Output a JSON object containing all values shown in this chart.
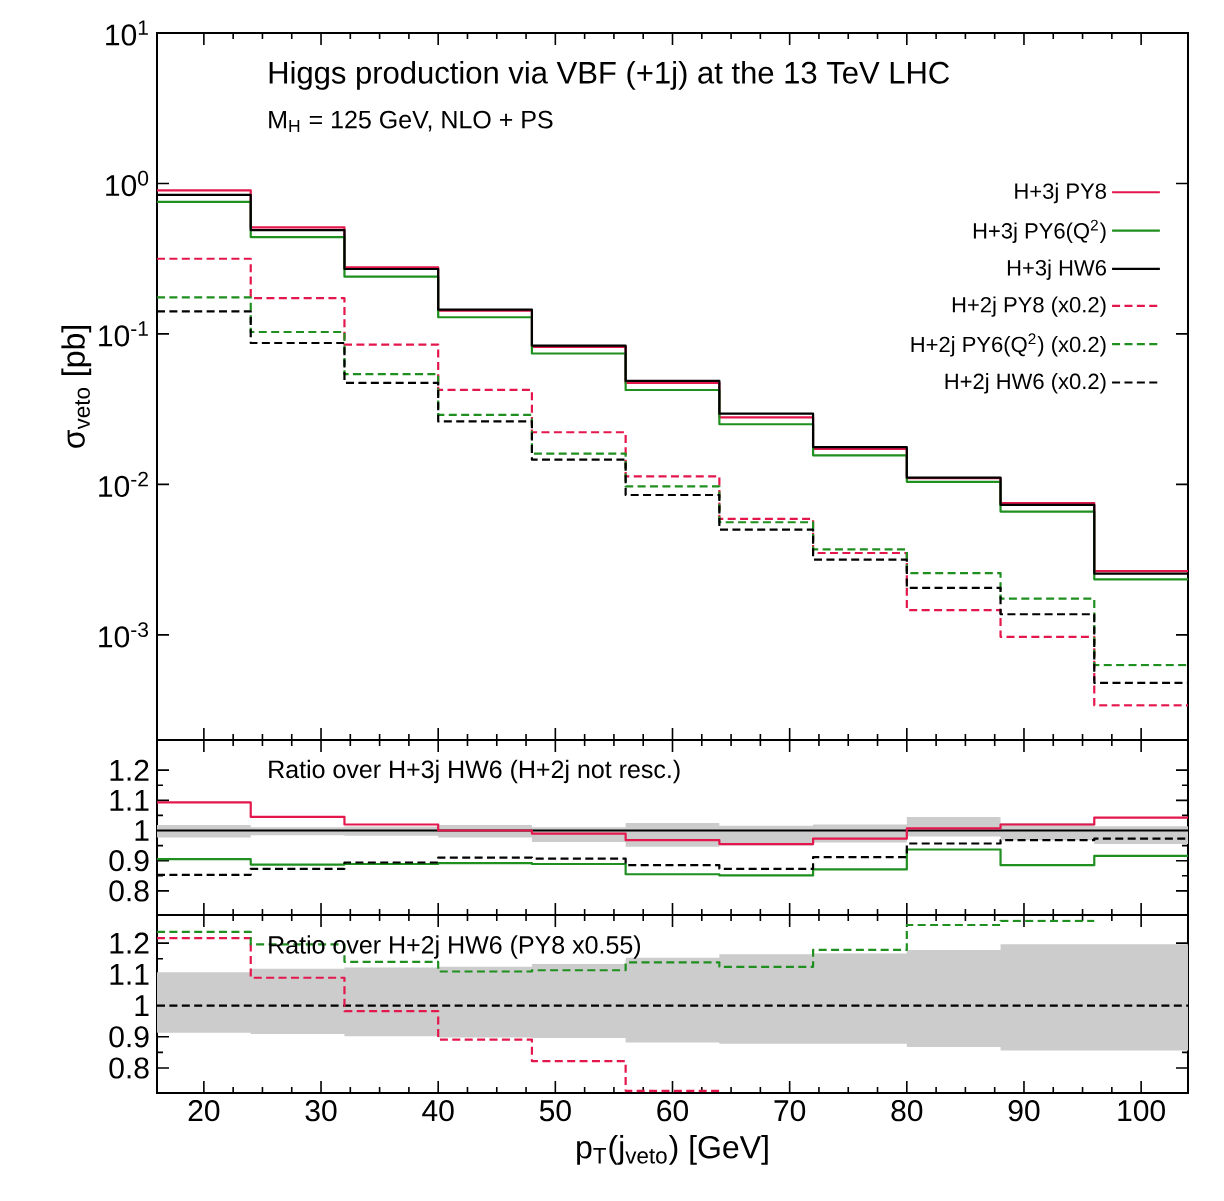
{
  "chart_data": [
    {
      "type": "step",
      "title": "Higgs production via VBF (+1j) at the 13 TeV LHC",
      "subtitle": "M$_{H}$ = 125 GeV, NLO + PS",
      "ylabel": "σ$_{veto}$ [pb]",
      "log": true,
      "legend": "top right",
      "tick_labels": "y",
      "x": [
        16,
        24,
        32,
        40,
        48,
        56,
        64,
        72,
        80,
        88,
        96,
        104
      ],
      "xlim": [
        16,
        104
      ],
      "xticks": [
        20,
        30,
        40,
        50,
        60,
        70,
        80,
        90,
        100
      ],
      "ylim": [
        0.0002,
        10
      ],
      "yticks": [
        {
          "value": 0.001,
          "label": "10$^{-3}$"
        },
        {
          "value": 0.01,
          "label": "10$^{-2}$"
        },
        {
          "value": 0.1,
          "label": "10$^{-1}$"
        },
        {
          "value": 1,
          "label": "10$^{0}$"
        },
        {
          "value": 10,
          "label": "10$^{1}$"
        }
      ],
      "series": [
        {
          "name": "H+3j PY8",
          "color": "#e3174b",
          "line_style": "solid",
          "values": [
            0.9,
            0.51,
            0.277,
            0.143,
            0.082,
            0.0472,
            0.0279,
            0.0172,
            0.011,
            0.0075,
            0.00265,
            0.00265
          ]
        },
        {
          "name": "H+3j PY6(Q$^{2}$)",
          "color": "#1f8f1f",
          "line_style": "solid",
          "values": [
            0.755,
            0.44,
            0.24,
            0.129,
            0.0741,
            0.0424,
            0.0251,
            0.0156,
            0.0104,
            0.0066,
            0.00234,
            0.00234
          ]
        },
        {
          "name": "H+3j HW6",
          "color": "#000000",
          "line_style": "solid",
          "values": [
            0.84,
            0.49,
            0.27,
            0.145,
            0.0836,
            0.0488,
            0.0295,
            0.0177,
            0.0111,
            0.0073,
            0.00255,
            0.00255
          ]
        },
        {
          "name": "H+2j PY8 (x0.2)",
          "color": "#e3174b",
          "line_style": "dashed",
          "values": [
            0.316,
            0.173,
            0.085,
            0.0425,
            0.0222,
            0.0113,
            0.0059,
            0.0035,
            0.00146,
            0.00097,
            0.00034,
            0.00034
          ]
        },
        {
          "name": "H+2j PY6(Q$^{2}$) (x0.2)",
          "color": "#1f8f1f",
          "line_style": "dashed",
          "values": [
            0.175,
            0.103,
            0.054,
            0.029,
            0.016,
            0.0097,
            0.0056,
            0.0037,
            0.00257,
            0.00174,
            0.00063,
            0.00063
          ]
        },
        {
          "name": "H+2j HW6 (x0.2)",
          "color": "#000000",
          "line_style": "dashed",
          "values": [
            0.141,
            0.087,
            0.0473,
            0.0262,
            0.0146,
            0.0085,
            0.005,
            0.00316,
            0.00205,
            0.00137,
            0.00048,
            0.00048
          ]
        }
      ]
    },
    {
      "type": "step",
      "annotations": [
        "Ratio over H+3j HW6 (H+2j not resc.)"
      ],
      "tick_labels": "y",
      "x": [
        16,
        24,
        32,
        40,
        48,
        56,
        64,
        72,
        80,
        88,
        96,
        104
      ],
      "xlim": [
        16,
        104
      ],
      "xticks": [
        20,
        30,
        40,
        50,
        60,
        70,
        80,
        90,
        100
      ],
      "ylim": [
        0.72,
        1.3
      ],
      "yticks": [
        0.8,
        0.9,
        1,
        1.1,
        1.2
      ],
      "series": [
        {
          "color": "#000000",
          "line_style": "solid",
          "values": [
            1,
            1,
            1,
            1,
            1,
            1,
            1,
            1,
            1,
            1,
            1,
            1
          ],
          "lower": [
            0.977,
            0.984,
            0.983,
            0.977,
            0.962,
            0.946,
            0.95,
            0.96,
            0.98,
            0.968,
            0.955,
            0.955
          ],
          "upper": [
            1.018,
            1.011,
            1.013,
            1.018,
            1.011,
            1.025,
            1.016,
            1.02,
            1.045,
            1.025,
            1.014,
            1.014
          ]
        },
        {
          "color": "#e3174b",
          "line_style": "solid",
          "values": [
            1.093,
            1.045,
            1.02,
            1.0,
            0.99,
            0.968,
            0.955,
            0.973,
            1.007,
            1.02,
            1.043,
            1.043
          ]
        },
        {
          "color": "#1f8f1f",
          "line_style": "solid",
          "values": [
            0.905,
            0.887,
            0.889,
            0.892,
            0.889,
            0.855,
            0.851,
            0.871,
            0.937,
            0.885,
            0.916,
            0.916
          ]
        },
        {
          "color": "#000000",
          "line_style": "dashed",
          "values": [
            0.853,
            0.873,
            0.894,
            0.91,
            0.907,
            0.885,
            0.873,
            0.912,
            0.957,
            0.968,
            0.973,
            0.973
          ]
        }
      ]
    },
    {
      "type": "step",
      "annotations": [
        "Ratio over H+2j HW6 (PY8 x0.55)"
      ],
      "xlabel": "p$_{T}$(j$_{veto}$) [GeV]",
      "x": [
        16,
        24,
        32,
        40,
        48,
        56,
        64,
        72,
        80,
        88,
        96,
        104
      ],
      "xlim": [
        16,
        104
      ],
      "xticks": [
        20,
        30,
        40,
        50,
        60,
        70,
        80,
        90,
        100
      ],
      "ylim": [
        0.72,
        1.29
      ],
      "yticks": [
        0.8,
        0.9,
        1,
        1.1,
        1.2
      ],
      "series": [
        {
          "color": "#000000",
          "line_style": "dashed",
          "values": [
            1,
            1,
            1,
            1,
            1,
            1,
            1,
            1,
            1,
            1,
            1,
            1
          ],
          "lower": [
            0.913,
            0.909,
            0.902,
            0.898,
            0.896,
            0.882,
            0.878,
            0.878,
            0.867,
            0.856,
            0.856,
            0.856
          ],
          "upper": [
            1.107,
            1.118,
            1.122,
            1.124,
            1.133,
            1.153,
            1.164,
            1.167,
            1.178,
            1.196,
            1.196,
            1.196
          ]
        },
        {
          "color": "#e3174b",
          "line_style": "dashed",
          "values": [
            1.216,
            1.089,
            0.982,
            0.891,
            0.822,
            0.727,
            0.727,
            null,
            null,
            null,
            null,
            null
          ]
        },
        {
          "color": "#1f8f1f",
          "line_style": "dashed",
          "values": [
            1.236,
            1.196,
            1.14,
            1.109,
            1.113,
            1.138,
            1.124,
            1.178,
            1.258,
            1.271,
            1.271,
            null
          ]
        }
      ]
    }
  ]
}
